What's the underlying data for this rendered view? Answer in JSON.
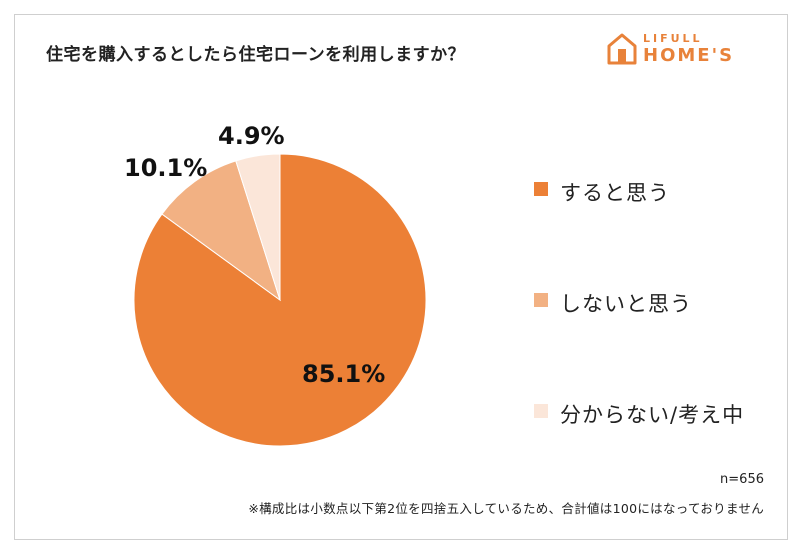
{
  "title": "住宅を購入するとしたら住宅ローンを利用しますか？",
  "logo": {
    "top": "LIFULL",
    "bottom": "HOME'S",
    "color": "#e8823a"
  },
  "chart_data": {
    "type": "pie",
    "slices": [
      {
        "label": "すると思う",
        "value": 85.1,
        "display": "85.1%",
        "color": "#ec8036"
      },
      {
        "label": "しないと思う",
        "value": 10.1,
        "display": "10.1%",
        "color": "#f2b183"
      },
      {
        "label": "分からない/考え中",
        "value": 4.9,
        "display": "4.9%",
        "color": "#fbe6d9"
      }
    ],
    "legend_position": "right",
    "start": "12 o'clock",
    "direction": "clockwise"
  },
  "sample_size": "n=656",
  "footnote": "※構成比は小数点以下第2位を四捨五入しているため、合計値は100にはなっておりません"
}
